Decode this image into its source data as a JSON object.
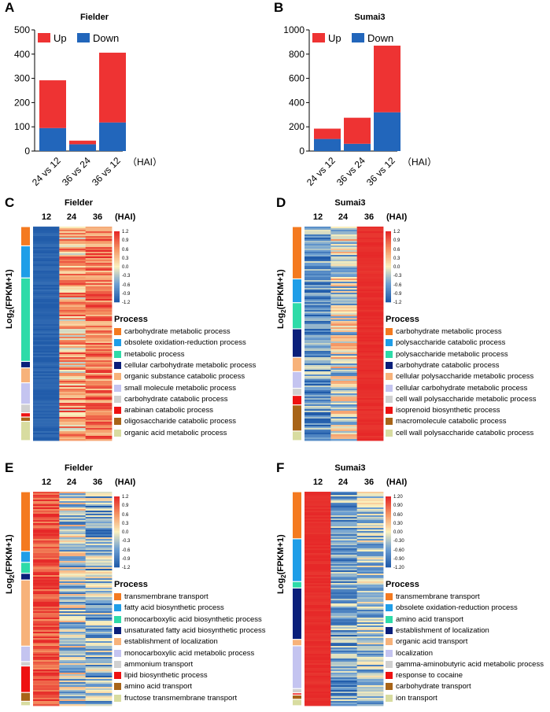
{
  "panels_ab": [
    {
      "letter": "A",
      "title": "Fielder",
      "hai_label": "（HAI）",
      "legend": [
        "Up",
        "Down"
      ],
      "colors": {
        "up": "#ee3333",
        "down": "#2266bb"
      },
      "y_ticks": [
        "0",
        "100",
        "200",
        "300",
        "400",
        "500"
      ]
    },
    {
      "letter": "B",
      "title": "Sumai3",
      "hai_label": "（HAI）",
      "legend": [
        "Up",
        "Down"
      ],
      "colors": {
        "up": "#ee3333",
        "down": "#2266bb"
      },
      "y_ticks": [
        "0",
        "200",
        "400",
        "600",
        "800",
        "1000"
      ]
    }
  ],
  "chart_data": [
    {
      "type": "bar",
      "title": "Fielder",
      "categories": [
        "24 vs 12",
        "36 vs 24",
        "36 vs 12"
      ],
      "series": [
        {
          "name": "Down",
          "values": [
            95,
            28,
            118
          ]
        },
        {
          "name": "Up",
          "values": [
            197,
            15,
            288
          ]
        }
      ],
      "stacked": true,
      "ylim": [
        0,
        500
      ],
      "xlabel": "（HAI）"
    },
    {
      "type": "bar",
      "title": "Sumai3",
      "categories": [
        "24 vs 12",
        "36 vs 24",
        "36 vs 12"
      ],
      "series": [
        {
          "name": "Down",
          "values": [
            100,
            60,
            320
          ]
        },
        {
          "name": "Up",
          "values": [
            85,
            215,
            550
          ]
        }
      ],
      "stacked": true,
      "ylim": [
        0,
        1000
      ],
      "xlabel": "（HAI）"
    }
  ],
  "heatmaps": [
    {
      "letter": "C",
      "title": "Fielder",
      "columns": [
        "12",
        "24",
        "36"
      ],
      "hai": "(HAI)",
      "ylabel": "Log2(FPKM+1)",
      "ylabel_main": "Log",
      "ylabel_sub": "2",
      "ylabel_rest": "(FPKM+1)",
      "pattern": "rising",
      "colorbar": [
        "1.2",
        "0.9",
        "0.6",
        "0.3",
        "0.0",
        "-0.3",
        "-0.6",
        "-0.9",
        "-1.2"
      ],
      "process_title": "Process",
      "processes": [
        {
          "label": "carbohydrate metabolic process",
          "color": "#f47a20",
          "share": 0.09
        },
        {
          "label": "obsolete oxidation-reduction process",
          "color": "#1f9ee8",
          "share": 0.15
        },
        {
          "label": "metabolic process",
          "color": "#2edba8",
          "share": 0.39
        },
        {
          "label": "cellular carbohydrate metabolic process",
          "color": "#0a1f7a",
          "share": 0.03
        },
        {
          "label": "organic substance catabolic process",
          "color": "#f7b27a",
          "share": 0.07
        },
        {
          "label": "small molecule metabolic process",
          "color": "#c4c4f0",
          "share": 0.1
        },
        {
          "label": "carbohydrate catabolic process",
          "color": "#d0d0d0",
          "share": 0.04
        },
        {
          "label": "arabinan catabolic process",
          "color": "#ee1111",
          "share": 0.02
        },
        {
          "label": "oligosaccharide catabolic process",
          "color": "#a86418",
          "share": 0.02
        },
        {
          "label": "organic acid metabolic process",
          "color": "#d8dca0",
          "share": 0.09
        }
      ]
    },
    {
      "letter": "D",
      "title": "Sumai3",
      "columns": [
        "12",
        "24",
        "36"
      ],
      "hai": "(HAI)",
      "ylabel": "Log2(FPKM+1)",
      "ylabel_main": "Log",
      "ylabel_sub": "2",
      "ylabel_rest": "(FPKM+1)",
      "pattern": "rising-sharp",
      "colorbar": [
        "1.2",
        "0.9",
        "0.6",
        "0.3",
        "0.0",
        "-0.3",
        "-0.6",
        "-0.9",
        "-1.2"
      ],
      "process_title": "Process",
      "processes": [
        {
          "label": "carbohydrate metabolic process",
          "color": "#f47a20",
          "share": 0.22
        },
        {
          "label": "polysaccharide catabolic process",
          "color": "#1f9ee8",
          "share": 0.1
        },
        {
          "label": "polysaccharide metabolic process",
          "color": "#2edba8",
          "share": 0.11
        },
        {
          "label": "carbohydrate catabolic process",
          "color": "#0a1f7a",
          "share": 0.12
        },
        {
          "label": "cellular polysaccharide metabolic process",
          "color": "#f7b27a",
          "share": 0.06
        },
        {
          "label": "cellular carbohydrate metabolic process",
          "color": "#c4c4f0",
          "share": 0.07
        },
        {
          "label": "cell wall polysaccharide metabolic process",
          "color": "#d0d0d0",
          "share": 0.03
        },
        {
          "label": "isoprenoid biosynthetic process",
          "color": "#ee1111",
          "share": 0.04
        },
        {
          "label": "macromolecule catabolic process",
          "color": "#a86418",
          "share": 0.11
        },
        {
          "label": "cell wall polysaccharide catabolic process",
          "color": "#d8dca0",
          "share": 0.04
        }
      ]
    },
    {
      "letter": "E",
      "title": "Fielder",
      "columns": [
        "12",
        "24",
        "36"
      ],
      "hai": "(HAI)",
      "ylabel": "Log2(FPKM+1)",
      "ylabel_main": "Log",
      "ylabel_sub": "2",
      "ylabel_rest": "(FPKM+1)",
      "pattern": "falling",
      "colorbar": [
        "1.2",
        "0.9",
        "0.6",
        "0.3",
        "0.0",
        "-0.3",
        "-0.6",
        "-0.9",
        "-1.2"
      ],
      "process_title": "Process",
      "processes": [
        {
          "label": "transmembrane transport",
          "color": "#f47a20",
          "share": 0.27
        },
        {
          "label": "fatty acid biosynthetic process",
          "color": "#1f9ee8",
          "share": 0.05
        },
        {
          "label": "monocarboxylic acid biosynthetic process",
          "color": "#2edba8",
          "share": 0.05
        },
        {
          "label": "unsaturated fatty acid biosynthetic process",
          "color": "#0a1f7a",
          "share": 0.03
        },
        {
          "label": "establishment of localization",
          "color": "#f7b27a",
          "share": 0.3
        },
        {
          "label": "monocarboxylic acid metabolic process",
          "color": "#c4c4f0",
          "share": 0.07
        },
        {
          "label": "ammonium transport",
          "color": "#d0d0d0",
          "share": 0.02
        },
        {
          "label": "lipid biosynthetic process",
          "color": "#ee1111",
          "share": 0.12
        },
        {
          "label": "amino acid transport",
          "color": "#a86418",
          "share": 0.04
        },
        {
          "label": "fructose transmembrane transport",
          "color": "#d8dca0",
          "share": 0.02
        }
      ]
    },
    {
      "letter": "F",
      "title": "Sumai3",
      "columns": [
        "12",
        "24",
        "36"
      ],
      "hai": "(HAI)",
      "ylabel": "Log2(FPKM+1)",
      "ylabel_main": "Log",
      "ylabel_sub": "2",
      "ylabel_rest": "(FPKM+1)",
      "pattern": "falling-sharp",
      "colorbar": [
        "1.20",
        "0.90",
        "0.60",
        "0.30",
        "0.00",
        "-0.30",
        "-0.60",
        "-0.90",
        "-1.20"
      ],
      "process_title": "Process",
      "processes": [
        {
          "label": "transmembrane transport",
          "color": "#f47a20",
          "share": 0.22
        },
        {
          "label": "obsolete oxidation-reduction process",
          "color": "#1f9ee8",
          "share": 0.2
        },
        {
          "label": "amino acid transport",
          "color": "#2edba8",
          "share": 0.03
        },
        {
          "label": "establishment of localization",
          "color": "#0a1f7a",
          "share": 0.24
        },
        {
          "label": "organic acid transport",
          "color": "#f7b27a",
          "share": 0.03
        },
        {
          "label": "localization",
          "color": "#c4c4f0",
          "share": 0.2
        },
        {
          "label": "gamma-aminobutyric acid metabolic process",
          "color": "#d0d0d0",
          "share": 0.02
        },
        {
          "label": "response to cocaine",
          "color": "#ee1111",
          "share": 0.01
        },
        {
          "label": "carbohydrate transport",
          "color": "#a86418",
          "share": 0.02
        },
        {
          "label": "ion transport",
          "color": "#d8dca0",
          "share": 0.03
        }
      ]
    }
  ]
}
